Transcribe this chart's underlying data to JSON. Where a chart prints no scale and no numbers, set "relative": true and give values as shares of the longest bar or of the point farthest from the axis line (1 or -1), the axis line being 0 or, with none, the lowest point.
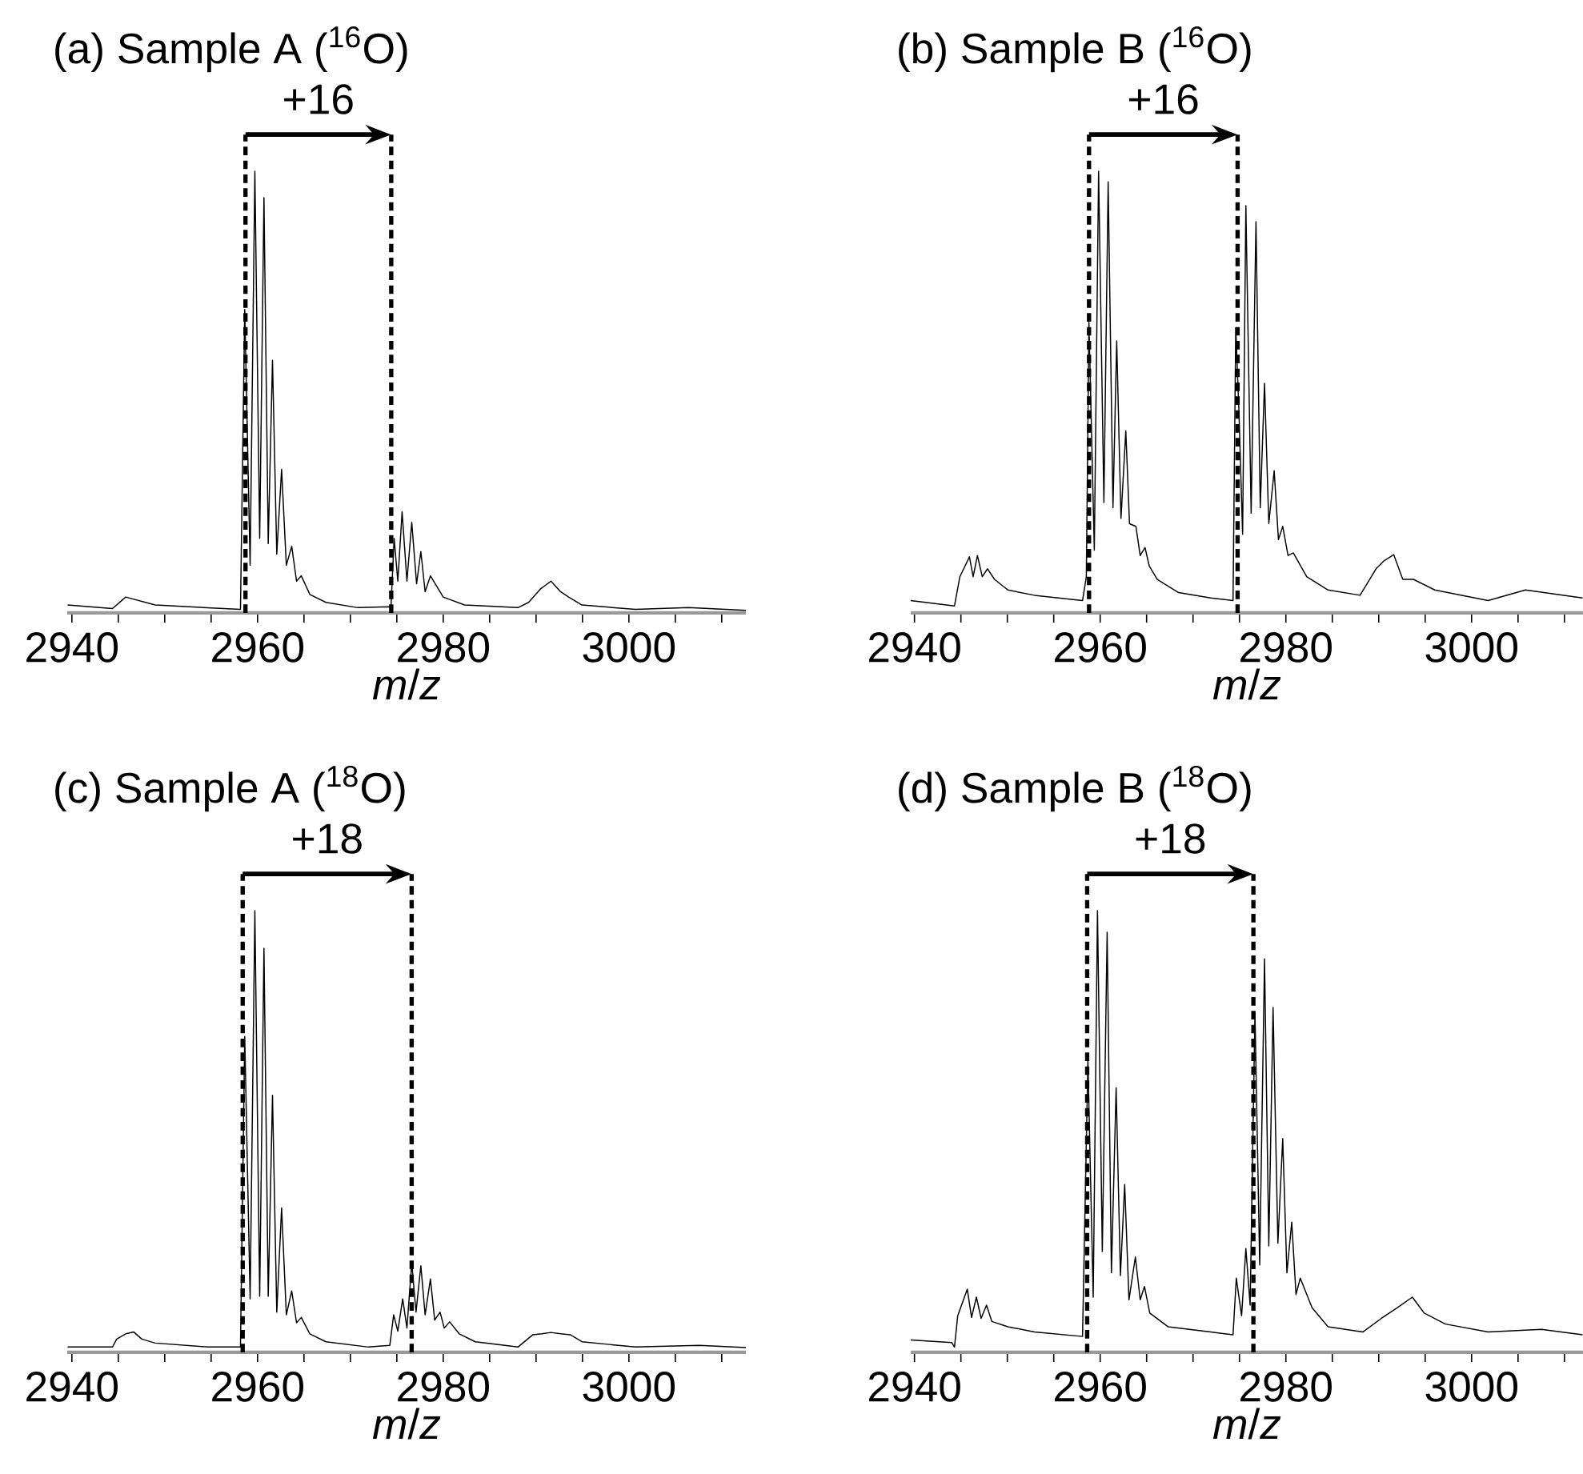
{
  "chart_data": [
    {
      "type": "line",
      "title": "(a) Sample A ($^{16}$O)",
      "xlabel": "*m*/*z*",
      "relative": true,
      "xlim": [
        2939.5,
        3012.6
      ],
      "xticks": [
        2940,
        {
          "value": 2945,
          "label": null
        },
        {
          "value": 2950,
          "label": null
        },
        {
          "value": 2955,
          "label": null
        },
        2960,
        {
          "value": 2965,
          "label": null
        },
        {
          "value": 2970,
          "label": null
        },
        {
          "value": 2975,
          "label": null
        },
        2980,
        {
          "value": 2985,
          "label": null
        },
        {
          "value": 2990,
          "label": null
        },
        {
          "value": 2995,
          "label": null
        },
        3000,
        {
          "value": 3005,
          "label": null
        },
        {
          "value": 3010,
          "label": null
        }
      ],
      "annotations": [
        "+16"
      ],
      "ref_lines": [
        {
          "axis": "x",
          "value": 2958.7,
          "color": "#000000",
          "line_style": "dashed"
        },
        {
          "axis": "x",
          "value": 2974.4,
          "color": "#000000",
          "line_style": "dashed"
        }
      ],
      "x": [
        2939.54,
        2944.37,
        2945.8,
        2948.97,
        2958.16,
        2958.62,
        2959.2,
        2959.71,
        2960.23,
        2960.69,
        2961.15,
        2961.61,
        2962.07,
        2962.59,
        2963.1,
        2963.68,
        2964.2,
        2964.71,
        2965.63,
        2967.36,
        2970.8,
        2974.14,
        2974.37,
        2974.71,
        2975.11,
        2975.57,
        2976.09,
        2976.61,
        2977.13,
        2977.59,
        2978.05,
        2978.62,
        2980.0,
        2982.3,
        2988.05,
        2989.2,
        2990.46,
        2991.61,
        2992.64,
        2993.51,
        2994.94,
        3000.69,
        3006.44,
        3012.6
      ],
      "series": [
        {
          "color": "#000000",
          "values": [
            0.018,
            0.01,
            0.036,
            0.018,
            0.008,
            0.687,
            0.108,
            1.0,
            0.169,
            0.94,
            0.157,
            0.572,
            0.133,
            0.325,
            0.108,
            0.151,
            0.072,
            0.084,
            0.042,
            0.024,
            0.012,
            0.014,
            0.012,
            0.169,
            0.072,
            0.229,
            0.072,
            0.205,
            0.066,
            0.139,
            0.048,
            0.084,
            0.036,
            0.018,
            0.012,
            0.024,
            0.054,
            0.072,
            0.048,
            0.036,
            0.018,
            0.008,
            0.012,
            0.006
          ]
        }
      ]
    },
    {
      "type": "line",
      "title": "(b) Sample B ($^{16}$O)",
      "xlabel": "*m*/*z*",
      "relative": true,
      "xlim": [
        2939.6,
        3012.0
      ],
      "xticks": [
        2940,
        {
          "value": 2945,
          "label": null
        },
        {
          "value": 2950,
          "label": null
        },
        {
          "value": 2955,
          "label": null
        },
        2960,
        {
          "value": 2965,
          "label": null
        },
        {
          "value": 2970,
          "label": null
        },
        {
          "value": 2975,
          "label": null
        },
        2980,
        {
          "value": 2985,
          "label": null
        },
        {
          "value": 2990,
          "label": null
        },
        {
          "value": 2995,
          "label": null
        },
        3000,
        {
          "value": 3005,
          "label": null
        },
        {
          "value": 3010,
          "label": null
        }
      ],
      "annotations": [
        "+16"
      ],
      "ref_lines": [
        {
          "axis": "x",
          "value": 2958.8,
          "color": "#000000",
          "line_style": "dashed"
        },
        {
          "axis": "x",
          "value": 2974.8,
          "color": "#000000",
          "line_style": "dashed"
        }
      ],
      "x": [
        2939.6,
        2944.31,
        2944.89,
        2945.92,
        2946.32,
        2946.78,
        2947.3,
        2947.87,
        2948.62,
        2950.06,
        2952.93,
        2958.1,
        2958.51,
        2958.79,
        2959.37,
        2959.83,
        2960.4,
        2960.86,
        2961.38,
        2961.78,
        2962.24,
        2962.76,
        2963.16,
        2963.85,
        2964.31,
        2964.83,
        2965.29,
        2966.15,
        2968.45,
        2971.9,
        2974.31,
        2974.6,
        2974.94,
        2975.34,
        2975.69,
        2976.26,
        2976.78,
        2977.24,
        2977.7,
        2978.16,
        2978.74,
        2979.2,
        2979.66,
        2980.23,
        2980.8,
        2982.24,
        2984.54,
        2987.99,
        2989.71,
        2990.57,
        2991.61,
        2992.59,
        2993.74,
        2996.03,
        3001.78,
        3005.8,
        3011.95
      ],
      "series": [
        {
          "color": "#000000",
          "values": [
            0.028,
            0.016,
            0.082,
            0.127,
            0.082,
            0.13,
            0.082,
            0.1,
            0.076,
            0.052,
            0.04,
            0.028,
            0.082,
            0.658,
            0.142,
            1.0,
            0.25,
            0.976,
            0.238,
            0.616,
            0.214,
            0.412,
            0.202,
            0.196,
            0.13,
            0.148,
            0.106,
            0.076,
            0.046,
            0.034,
            0.028,
            0.646,
            0.46,
            0.178,
            0.922,
            0.226,
            0.886,
            0.238,
            0.52,
            0.202,
            0.322,
            0.166,
            0.196,
            0.13,
            0.136,
            0.082,
            0.052,
            0.04,
            0.1,
            0.118,
            0.132,
            0.076,
            0.076,
            0.052,
            0.028,
            0.052,
            0.034
          ]
        }
      ]
    },
    {
      "type": "line",
      "title": "(c) Sample A ($^{18}$O)",
      "xlabel": "*m*/*z*",
      "relative": true,
      "xlim": [
        2939.5,
        3012.6
      ],
      "xticks": [
        2940,
        {
          "value": 2945,
          "label": null
        },
        {
          "value": 2950,
          "label": null
        },
        {
          "value": 2955,
          "label": null
        },
        2960,
        {
          "value": 2965,
          "label": null
        },
        {
          "value": 2970,
          "label": null
        },
        {
          "value": 2975,
          "label": null
        },
        2980,
        {
          "value": 2985,
          "label": null
        },
        {
          "value": 2990,
          "label": null
        },
        {
          "value": 2995,
          "label": null
        },
        3000,
        {
          "value": 3005,
          "label": null
        },
        {
          "value": 3010,
          "label": null
        }
      ],
      "annotations": [
        "+18"
      ],
      "ref_lines": [
        {
          "axis": "x",
          "value": 2958.4,
          "color": "#000000",
          "line_style": "dashed"
        },
        {
          "axis": "x",
          "value": 2976.6,
          "color": "#000000",
          "line_style": "dashed"
        }
      ],
      "x": [
        2939.54,
        2944.37,
        2944.83,
        2945.8,
        2946.67,
        2947.53,
        2948.97,
        2954.71,
        2958.16,
        2958.62,
        2959.2,
        2959.71,
        2960.23,
        2960.69,
        2961.15,
        2961.61,
        2962.07,
        2962.59,
        2963.1,
        2963.68,
        2964.2,
        2964.71,
        2965.63,
        2967.36,
        2971.95,
        2974.25,
        2974.66,
        2975.11,
        2975.63,
        2976.09,
        2976.61,
        2977.07,
        2977.59,
        2978.05,
        2978.62,
        2979.08,
        2979.66,
        2980.11,
        2980.69,
        2981.72,
        2983.45,
        2988.05,
        2989.66,
        2990.63,
        2991.61,
        2992.64,
        2993.68,
        2994.94,
        3000.69,
        3007.59,
        3012.6
      ],
      "series": [
        {
          "color": "#000000",
          "values": [
            0.012,
            0.012,
            0.03,
            0.042,
            0.046,
            0.03,
            0.021,
            0.012,
            0.012,
            0.715,
            0.121,
            1.0,
            0.127,
            0.915,
            0.127,
            0.582,
            0.091,
            0.327,
            0.085,
            0.139,
            0.067,
            0.079,
            0.042,
            0.024,
            0.012,
            0.016,
            0.085,
            0.048,
            0.121,
            0.055,
            0.202,
            0.091,
            0.196,
            0.085,
            0.166,
            0.073,
            0.091,
            0.055,
            0.069,
            0.042,
            0.024,
            0.012,
            0.04,
            0.042,
            0.045,
            0.042,
            0.04,
            0.024,
            0.012,
            0.016,
            0.011
          ]
        }
      ]
    },
    {
      "type": "line",
      "title": "(d) Sample B ($^{18}$O)",
      "xlabel": "*m*/*z*",
      "relative": true,
      "xlim": [
        2939.6,
        3012.0
      ],
      "xticks": [
        2940,
        {
          "value": 2945,
          "label": null
        },
        {
          "value": 2950,
          "label": null
        },
        {
          "value": 2955,
          "label": null
        },
        2960,
        {
          "value": 2965,
          "label": null
        },
        {
          "value": 2970,
          "label": null
        },
        {
          "value": 2975,
          "label": null
        },
        2980,
        {
          "value": 2985,
          "label": null
        },
        {
          "value": 2990,
          "label": null
        },
        {
          "value": 2995,
          "label": null
        },
        3000,
        {
          "value": 3005,
          "label": null
        },
        {
          "value": 3010,
          "label": null
        }
      ],
      "annotations": [
        "+18"
      ],
      "ref_lines": [
        {
          "axis": "x",
          "value": 2958.6,
          "color": "#000000",
          "line_style": "dashed"
        },
        {
          "axis": "x",
          "value": 2976.5,
          "color": "#000000",
          "line_style": "dashed"
        }
      ],
      "x": [
        2939.6,
        2944.02,
        2944.31,
        2944.66,
        2945.69,
        2946.15,
        2946.67,
        2947.18,
        2947.76,
        2948.33,
        2950.06,
        2952.93,
        2958.1,
        2958.68,
        2959.25,
        2959.71,
        2960.23,
        2960.75,
        2961.21,
        2961.72,
        2962.18,
        2962.64,
        2963.1,
        2963.79,
        2964.31,
        2964.77,
        2965.34,
        2967.3,
        2971.9,
        2974.31,
        2974.66,
        2975.23,
        2975.69,
        2976.15,
        2976.67,
        2977.18,
        2977.7,
        2978.16,
        2978.62,
        2979.14,
        2979.66,
        2980.11,
        2980.63,
        2981.09,
        2981.55,
        2982.82,
        2984.54,
        2988.28,
        2990.29,
        2992.01,
        2993.62,
        2994.89,
        2997.18,
        3001.78,
        3007.53,
        3011.95
      ],
      "series": [
        {
          "color": "#000000",
          "values": [
            0.028,
            0.022,
            0.012,
            0.083,
            0.143,
            0.079,
            0.125,
            0.077,
            0.107,
            0.07,
            0.058,
            0.046,
            0.036,
            0.66,
            0.125,
            1.0,
            0.228,
            0.951,
            0.18,
            0.599,
            0.174,
            0.38,
            0.119,
            0.216,
            0.119,
            0.149,
            0.089,
            0.058,
            0.046,
            0.04,
            0.168,
            0.083,
            0.235,
            0.107,
            0.769,
            0.198,
            0.891,
            0.241,
            0.781,
            0.247,
            0.484,
            0.18,
            0.295,
            0.131,
            0.168,
            0.101,
            0.058,
            0.046,
            0.077,
            0.101,
            0.125,
            0.089,
            0.064,
            0.046,
            0.052,
            0.04
          ]
        }
      ]
    }
  ]
}
